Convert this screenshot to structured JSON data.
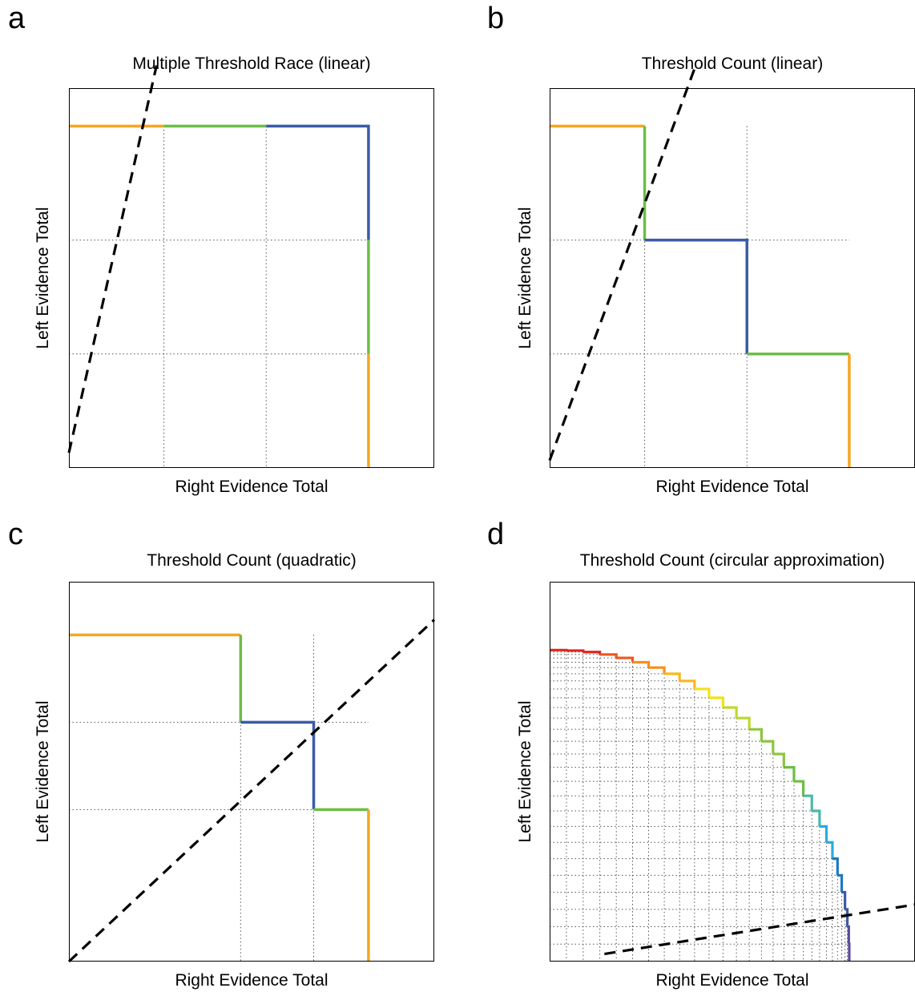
{
  "panels": [
    {
      "letter": "a",
      "title": "Multiple Threshold Race (linear)",
      "xlabel": "Right Evidence Total",
      "ylabel": "Left Evidence Total"
    },
    {
      "letter": "b",
      "title": "Threshold Count (linear)",
      "xlabel": "Right Evidence Total",
      "ylabel": "Left Evidence Total"
    },
    {
      "letter": "c",
      "title": "Threshold Count (quadratic)",
      "xlabel": "Right Evidence Total",
      "ylabel": "Left Evidence Total"
    },
    {
      "letter": "d",
      "title": "Threshold Count (circular approximation)",
      "xlabel": "Right Evidence Total",
      "ylabel": "Left Evidence Total"
    }
  ],
  "colors": {
    "orange": "#f5a623",
    "green": "#6cbe45",
    "blue": "#3a5ba8",
    "dashed_line": "#000000",
    "grid": "#555555"
  },
  "chart_data": [
    {
      "type": "line",
      "title": "Multiple Threshold Race (linear)",
      "xlabel": "Right Evidence Total",
      "ylabel": "Left Evidence Total",
      "xlim": [
        0,
        1
      ],
      "ylim": [
        0,
        1
      ],
      "grid_x": [
        0.26,
        0.54
      ],
      "grid_y": [
        0.3,
        0.6
      ],
      "boundary_segments": [
        {
          "color": "orange",
          "points": [
            [
              0,
              0.9
            ],
            [
              0.26,
              0.9
            ]
          ]
        },
        {
          "color": "green",
          "points": [
            [
              0.26,
              0.9
            ],
            [
              0.54,
              0.9
            ]
          ]
        },
        {
          "color": "blue",
          "points": [
            [
              0.54,
              0.9
            ],
            [
              0.82,
              0.9
            ],
            [
              0.82,
              0.6
            ]
          ]
        },
        {
          "color": "green",
          "points": [
            [
              0.82,
              0.6
            ],
            [
              0.82,
              0.3
            ]
          ]
        },
        {
          "color": "orange",
          "points": [
            [
              0.82,
              0.3
            ],
            [
              0.82,
              0
            ]
          ]
        }
      ],
      "dashed_line": [
        [
          0,
          0.04
        ],
        [
          0.24,
          1.06
        ]
      ]
    },
    {
      "type": "line",
      "title": "Threshold Count (linear)",
      "xlabel": "Right Evidence Total",
      "ylabel": "Left Evidence Total",
      "xlim": [
        0,
        1
      ],
      "ylim": [
        0,
        1
      ],
      "grid_x": [
        0.26,
        0.54
      ],
      "grid_y": [
        0.3,
        0.6
      ],
      "boundary_segments": [
        {
          "color": "orange",
          "points": [
            [
              0,
              0.9
            ],
            [
              0.26,
              0.9
            ]
          ]
        },
        {
          "color": "green",
          "points": [
            [
              0.26,
              0.9
            ],
            [
              0.26,
              0.6
            ]
          ]
        },
        {
          "color": "blue",
          "points": [
            [
              0.26,
              0.6
            ],
            [
              0.54,
              0.6
            ],
            [
              0.54,
              0.3
            ]
          ]
        },
        {
          "color": "green",
          "points": [
            [
              0.54,
              0.3
            ],
            [
              0.82,
              0.3
            ]
          ]
        },
        {
          "color": "orange",
          "points": [
            [
              0.82,
              0.3
            ],
            [
              0.82,
              0
            ]
          ]
        }
      ],
      "dashed_line": [
        [
          0,
          0.02
        ],
        [
          0.4,
          1.06
        ]
      ]
    },
    {
      "type": "line",
      "title": "Threshold Count (quadratic)",
      "xlabel": "Right Evidence Total",
      "ylabel": "Left Evidence Total",
      "xlim": [
        0,
        1
      ],
      "ylim": [
        0,
        1
      ],
      "grid_x": [
        0.47,
        0.67
      ],
      "grid_y": [
        0.4,
        0.63
      ],
      "boundary_segments": [
        {
          "color": "orange",
          "points": [
            [
              0,
              0.86
            ],
            [
              0.47,
              0.86
            ]
          ]
        },
        {
          "color": "green",
          "points": [
            [
              0.47,
              0.86
            ],
            [
              0.47,
              0.63
            ]
          ]
        },
        {
          "color": "blue",
          "points": [
            [
              0.47,
              0.63
            ],
            [
              0.67,
              0.63
            ],
            [
              0.67,
              0.4
            ]
          ]
        },
        {
          "color": "green",
          "points": [
            [
              0.67,
              0.4
            ],
            [
              0.82,
              0.4
            ]
          ]
        },
        {
          "color": "orange",
          "points": [
            [
              0.82,
              0.4
            ],
            [
              0.82,
              0
            ]
          ]
        }
      ],
      "dashed_line": [
        [
          0,
          0
        ],
        [
          1,
          0.9
        ]
      ]
    },
    {
      "type": "line",
      "title": "Threshold Count (circular approximation)",
      "xlabel": "Right Evidence Total",
      "ylabel": "Left Evidence Total",
      "xlim": [
        0,
        1
      ],
      "ylim": [
        0,
        1
      ],
      "radius": 0.82,
      "steps": 28,
      "palette": [
        "#e2231a",
        "#f0551e",
        "#f7901e",
        "#f9b81f",
        "#f4e01c",
        "#bfd730",
        "#8cc63f",
        "#6cbe45",
        "#4db6ac",
        "#29abe2",
        "#1f78c1",
        "#3a5ba8",
        "#5b4a9b"
      ],
      "dashed_line": [
        [
          0.15,
          0.02
        ],
        [
          1,
          0.15
        ]
      ]
    }
  ]
}
